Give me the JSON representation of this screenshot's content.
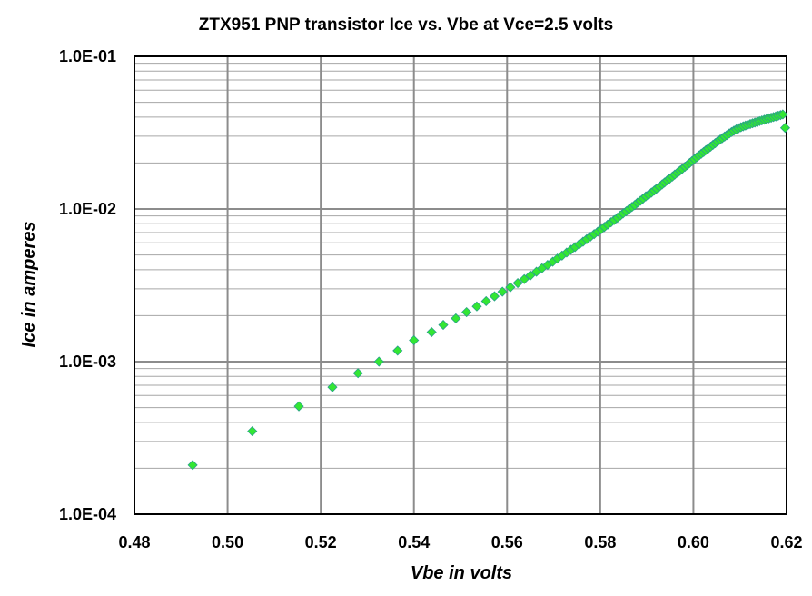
{
  "chart_data": {
    "type": "scatter",
    "title": "ZTX951 PNP transistor  Ice vs. Vbe  at  Vce=2.5 volts",
    "xlabel": "Vbe  in  volts",
    "ylabel": "Ice  in  amperes",
    "xlim": [
      0.48,
      0.62
    ],
    "ylim": [
      0.0001,
      0.1
    ],
    "yscale": "log",
    "grid": true,
    "x_ticks": [
      0.48,
      0.5,
      0.52,
      0.54,
      0.56,
      0.58,
      0.6,
      0.62
    ],
    "x_tick_labels": [
      "0.48",
      "0.50",
      "0.52",
      "0.54",
      "0.56",
      "0.58",
      "0.60",
      "0.62"
    ],
    "y_ticks": [
      0.0001,
      0.001,
      0.01,
      0.1
    ],
    "y_tick_labels": [
      "1.0E-04",
      "1.0E-03",
      "1.0E-02",
      "1.0E-01"
    ],
    "marker_color": "#33e633",
    "marker_edge_color": "#2aa08a",
    "series": [
      {
        "x": [
          0.4925,
          0.5053,
          0.5153,
          0.5225,
          0.528,
          0.5325,
          0.5365,
          0.54,
          0.5438,
          0.5463,
          0.549,
          0.5513,
          0.5535,
          0.5555,
          0.5573,
          0.559,
          0.5607,
          0.5623,
          0.5637,
          0.565,
          0.5663,
          0.5675,
          0.5687,
          0.5698,
          0.5708,
          0.5718,
          0.5728,
          0.5737,
          0.5746,
          0.5755,
          0.5763,
          0.5771,
          0.5779,
          0.5787,
          0.5795,
          0.5802,
          0.5809,
          0.5816,
          0.5823,
          0.583,
          0.5837,
          0.5843,
          0.5849,
          0.5856,
          0.5862,
          0.5868,
          0.5874,
          0.588,
          0.5886,
          0.5892,
          0.5898,
          0.5904,
          0.591,
          0.5916,
          0.5921,
          0.5927,
          0.5933,
          0.5938,
          0.5944,
          0.5949,
          0.5955,
          0.596,
          0.5966,
          0.5971,
          0.5976,
          0.5982,
          0.5987,
          0.5992,
          0.5997,
          0.6002,
          0.6007,
          0.6012,
          0.6017,
          0.6022,
          0.6027,
          0.6032,
          0.6037,
          0.6042,
          0.6047,
          0.6052,
          0.6057,
          0.6062,
          0.6067,
          0.6072,
          0.6077,
          0.6082,
          0.6087,
          0.6092,
          0.6097,
          0.6102,
          0.6107,
          0.6112,
          0.6117,
          0.6122,
          0.6127,
          0.6132,
          0.6137,
          0.6142,
          0.6147,
          0.6152,
          0.6157,
          0.6162,
          0.6167,
          0.6172,
          0.6177,
          0.6182,
          0.6187,
          0.6192,
          0.6197
        ],
        "y": [
          0.00021,
          0.00035,
          0.00051,
          0.00068,
          0.00084,
          0.001,
          0.00118,
          0.00138,
          0.00156,
          0.00174,
          0.00192,
          0.00211,
          0.0023,
          0.00249,
          0.00268,
          0.00287,
          0.00307,
          0.00327,
          0.00347,
          0.00367,
          0.00388,
          0.00409,
          0.0043,
          0.00451,
          0.00473,
          0.00495,
          0.00518,
          0.0054,
          0.00563,
          0.00587,
          0.0061,
          0.00634,
          0.00659,
          0.00684,
          0.0071,
          0.00736,
          0.00762,
          0.0079,
          0.00818,
          0.00846,
          0.00875,
          0.00905,
          0.00935,
          0.00966,
          0.00998,
          0.0103,
          0.0106,
          0.011,
          0.0113,
          0.0117,
          0.0121,
          0.0124,
          0.0128,
          0.0132,
          0.0136,
          0.014,
          0.0145,
          0.0149,
          0.0154,
          0.0158,
          0.0163,
          0.0168,
          0.0173,
          0.0178,
          0.0183,
          0.0189,
          0.0194,
          0.02,
          0.0206,
          0.0212,
          0.0218,
          0.0224,
          0.023,
          0.0236,
          0.0243,
          0.0249,
          0.0256,
          0.0263,
          0.027,
          0.0277,
          0.0284,
          0.0291,
          0.0298,
          0.0305,
          0.0312,
          0.0319,
          0.0326,
          0.0332,
          0.0338,
          0.0343,
          0.0348,
          0.0352,
          0.0356,
          0.036,
          0.0364,
          0.0368,
          0.0372,
          0.0376,
          0.038,
          0.0384,
          0.0388,
          0.0392,
          0.0396,
          0.04,
          0.0404,
          0.0408,
          0.0412,
          0.0416,
          0.034
        ]
      }
    ]
  }
}
